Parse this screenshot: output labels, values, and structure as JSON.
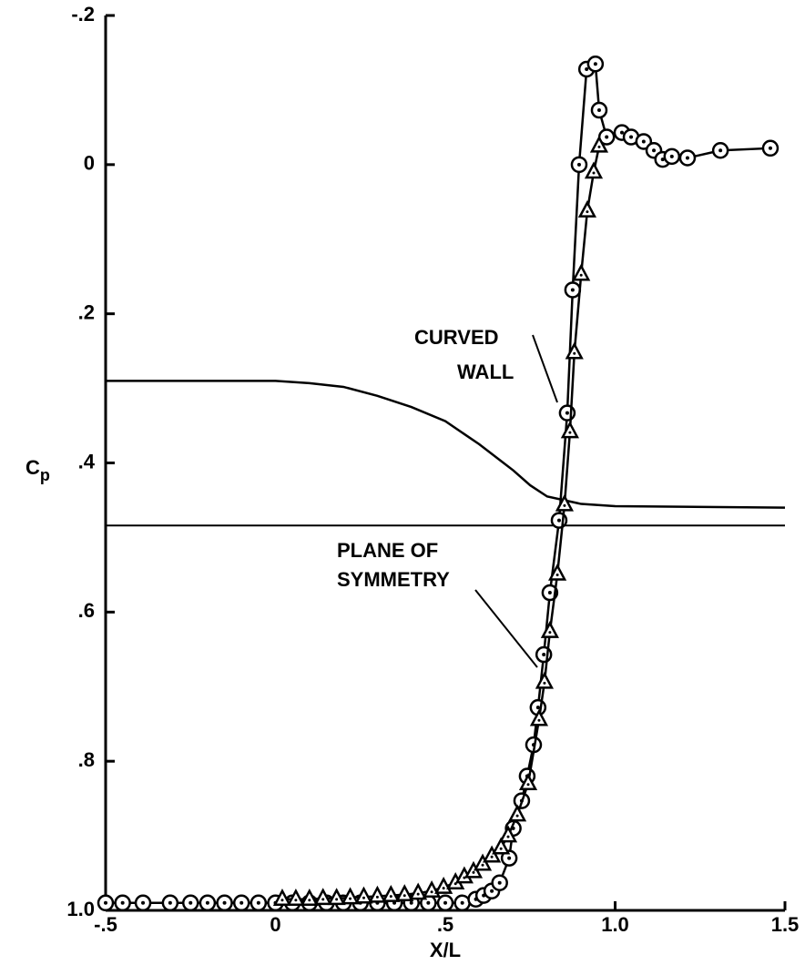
{
  "chart_data": {
    "type": "scatter",
    "xlabel": "X/L",
    "ylabel": "Cp",
    "xlim": [
      -0.5,
      1.5
    ],
    "ylim": [
      -0.2,
      1.0
    ],
    "y_inverted": true,
    "xticks": [
      {
        "value": -0.5,
        "label": "-.5"
      },
      0,
      {
        "value": 0.5,
        "label": ".5"
      },
      {
        "value": 1.0,
        "label": "1.0"
      },
      {
        "value": 1.5,
        "label": "1.5"
      }
    ],
    "yticks": [
      {
        "value": -0.2,
        "label": "-.2"
      },
      0,
      {
        "value": 0.2,
        "label": ".2"
      },
      {
        "value": 0.4,
        "label": ".4"
      },
      {
        "value": 0.6,
        "label": ".6"
      },
      {
        "value": 0.8,
        "label": ".8"
      },
      {
        "value": 1.0,
        "label": "1.0"
      }
    ],
    "color": "#000000",
    "series": [
      {
        "name": "CURVED WALL",
        "marker": "circle",
        "x": [
          -0.5,
          -0.45,
          -0.39,
          -0.31,
          -0.25,
          -0.2,
          -0.15,
          -0.1,
          -0.05,
          0,
          0.05,
          0.1,
          0.15,
          0.2,
          0.25,
          0.3,
          0.35,
          0.4,
          0.45,
          0.5,
          0.55,
          0.59,
          0.613,
          0.637,
          0.66,
          0.688,
          0.7,
          0.725,
          0.741,
          0.76,
          0.773,
          0.79,
          0.808,
          0.835,
          0.859,
          0.875,
          0.894,
          0.916,
          0.942,
          0.953,
          0.975,
          1.02,
          1.047,
          1.084,
          1.114,
          1.14,
          1.167,
          1.213,
          1.31,
          1.457
        ],
        "y": [
          0.99,
          0.99,
          0.99,
          0.99,
          0.99,
          0.99,
          0.99,
          0.99,
          0.99,
          0.99,
          0.99,
          0.99,
          0.99,
          0.99,
          0.99,
          0.99,
          0.99,
          0.99,
          0.99,
          0.99,
          0.99,
          0.985,
          0.98,
          0.974,
          0.963,
          0.93,
          0.89,
          0.853,
          0.82,
          0.778,
          0.728,
          0.657,
          0.574,
          0.477,
          0.333,
          0.168,
          0.0,
          -0.128,
          -0.135,
          -0.073,
          -0.037,
          -0.043,
          -0.037,
          -0.031,
          -0.019,
          -0.007,
          -0.011,
          -0.009,
          -0.019,
          -0.022
        ]
      },
      {
        "name": "PLANE OF SYMMETRY",
        "marker": "triangle",
        "x": [
          0.02,
          0.06,
          0.1,
          0.14,
          0.18,
          0.22,
          0.26,
          0.3,
          0.34,
          0.38,
          0.42,
          0.46,
          0.495,
          0.53,
          0.556,
          0.583,
          0.61,
          0.637,
          0.664,
          0.685,
          0.712,
          0.744,
          0.776,
          0.792,
          0.808,
          0.83,
          0.851,
          0.867,
          0.88,
          0.9,
          0.918,
          0.937,
          0.953
        ],
        "y": [
          0.985,
          0.985,
          0.985,
          0.984,
          0.984,
          0.983,
          0.982,
          0.981,
          0.98,
          0.979,
          0.977,
          0.974,
          0.969,
          0.963,
          0.955,
          0.948,
          0.938,
          0.927,
          0.916,
          0.9,
          0.872,
          0.83,
          0.744,
          0.694,
          0.626,
          0.549,
          0.456,
          0.358,
          0.252,
          0.147,
          0.062,
          0.01,
          -0.025
        ]
      }
    ],
    "wall_contour": {
      "x": [
        -0.5,
        0,
        0.1,
        0.2,
        0.3,
        0.4,
        0.5,
        0.6,
        0.7,
        0.75,
        0.8,
        0.9,
        1.0,
        1.5
      ],
      "y": [
        0.29,
        0.29,
        0.293,
        0.298,
        0.31,
        0.325,
        0.344,
        0.375,
        0.41,
        0.43,
        0.445,
        0.455,
        0.458,
        0.46
      ]
    },
    "centerline": {
      "x": [
        -0.5,
        1.5
      ],
      "y": [
        0.484,
        0.484
      ]
    }
  }
}
